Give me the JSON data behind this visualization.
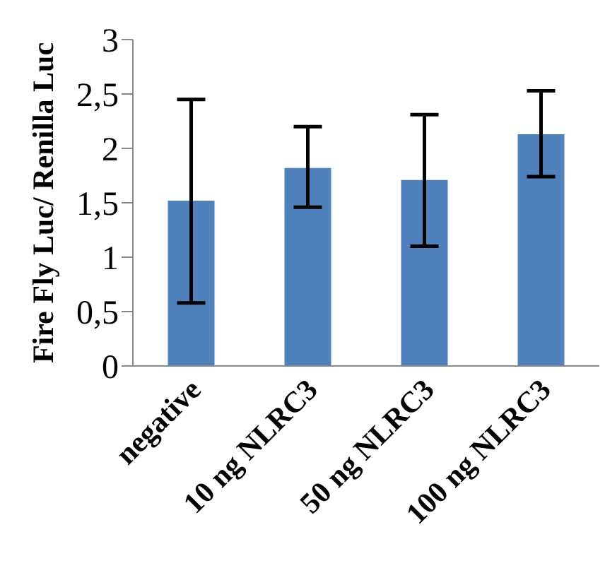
{
  "chart_data": {
    "type": "bar",
    "ylabel": "Fire Fly Luc/ Renilla Luc",
    "categories": [
      "negative",
      "10 ng NLRC3",
      "50 ng NLRC3",
      "100 ng NLRC3"
    ],
    "values": [
      1.52,
      1.82,
      1.71,
      2.13
    ],
    "color": "#4f81bd",
    "errors": [
      [
        0.58,
        2.45
      ],
      [
        1.46,
        2.2
      ],
      [
        1.1,
        2.31
      ],
      [
        1.74,
        2.53
      ]
    ],
    "ylim": [
      0,
      3
    ],
    "yticks": [
      0,
      {
        "value": 0.5,
        "label": "0,5"
      },
      1,
      {
        "value": 1.5,
        "label": "1,5"
      },
      2,
      {
        "value": 2.5,
        "label": "2,5"
      },
      3
    ],
    "grid": false,
    "legend": false
  }
}
